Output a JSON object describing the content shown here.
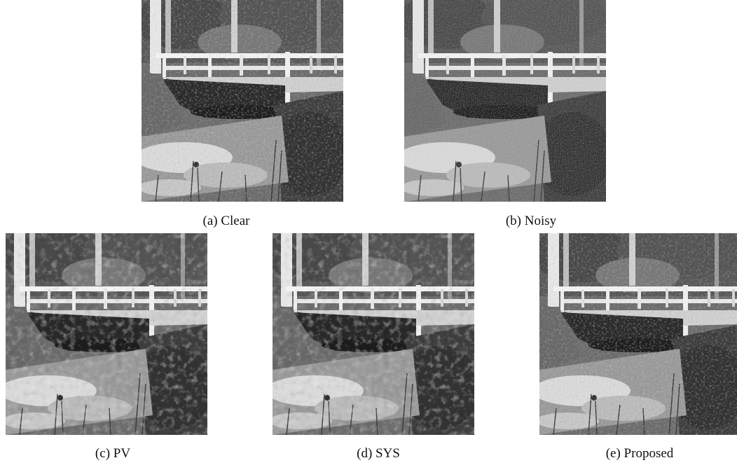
{
  "figure": {
    "panels": [
      {
        "id": "a",
        "caption": "(a) Clear",
        "variant": "clear"
      },
      {
        "id": "b",
        "caption": "(b) Noisy",
        "variant": "noisy"
      },
      {
        "id": "c",
        "caption": "(c) PV",
        "variant": "smooth"
      },
      {
        "id": "d",
        "caption": "(d) SYS",
        "variant": "smooth"
      },
      {
        "id": "e",
        "caption": "(e) Proposed",
        "variant": "proposed"
      }
    ]
  }
}
